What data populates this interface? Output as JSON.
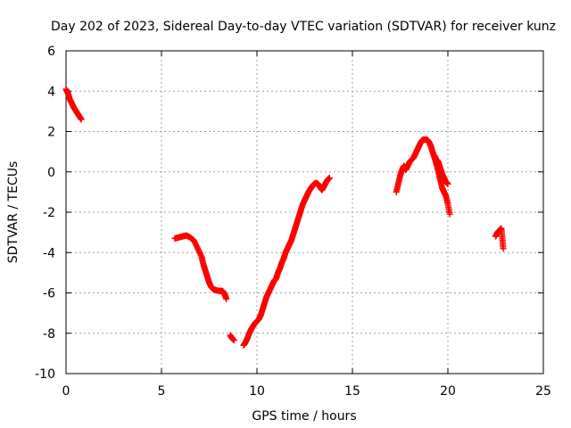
{
  "chart_data": {
    "type": "scatter",
    "title": "Day 202 of 2023, Sidereal Day-to-day VTEC variation (SDTVAR) for receiver kunz",
    "xlabel": "GPS time / hours",
    "ylabel": "SDTVAR / TECUs",
    "xlim": [
      0,
      25
    ],
    "ylim": [
      -10,
      6
    ],
    "xticks": [
      0,
      5,
      10,
      15,
      20,
      25
    ],
    "yticks": [
      -10,
      -8,
      -6,
      -4,
      -2,
      0,
      2,
      4,
      6
    ],
    "grid": true,
    "marker": "+",
    "series": [
      {
        "name": "SDTVAR",
        "color": "#ff0000",
        "segments": [
          [
            [
              0.0,
              4.1
            ],
            [
              0.1,
              3.9
            ],
            [
              0.2,
              3.6
            ],
            [
              0.3,
              3.4
            ],
            [
              0.4,
              3.2
            ],
            [
              0.5,
              3.05
            ],
            [
              0.6,
              2.9
            ],
            [
              0.7,
              2.75
            ],
            [
              0.8,
              2.6
            ]
          ],
          [
            [
              5.7,
              -3.3
            ],
            [
              5.9,
              -3.25
            ],
            [
              6.1,
              -3.2
            ],
            [
              6.3,
              -3.15
            ],
            [
              6.5,
              -3.25
            ],
            [
              6.7,
              -3.4
            ],
            [
              6.9,
              -3.8
            ],
            [
              7.1,
              -4.2
            ],
            [
              7.2,
              -4.6
            ],
            [
              7.3,
              -4.9
            ],
            [
              7.4,
              -5.2
            ],
            [
              7.5,
              -5.5
            ],
            [
              7.6,
              -5.7
            ],
            [
              7.7,
              -5.8
            ],
            [
              7.8,
              -5.85
            ],
            [
              8.0,
              -5.9
            ],
            [
              8.2,
              -5.9
            ],
            [
              8.3,
              -6.05
            ],
            [
              8.4,
              -6.3
            ]
          ],
          [
            [
              8.6,
              -8.1
            ],
            [
              8.7,
              -8.25
            ],
            [
              8.8,
              -8.35
            ]
          ],
          [
            [
              9.3,
              -8.6
            ],
            [
              9.4,
              -8.45
            ],
            [
              9.5,
              -8.25
            ],
            [
              9.6,
              -8.0
            ],
            [
              9.7,
              -7.8
            ],
            [
              9.8,
              -7.65
            ],
            [
              9.9,
              -7.5
            ],
            [
              10.0,
              -7.4
            ],
            [
              10.1,
              -7.3
            ],
            [
              10.2,
              -7.1
            ],
            [
              10.3,
              -6.8
            ],
            [
              10.4,
              -6.5
            ],
            [
              10.5,
              -6.2
            ],
            [
              10.6,
              -6.0
            ],
            [
              10.7,
              -5.8
            ],
            [
              10.8,
              -5.6
            ],
            [
              10.9,
              -5.4
            ],
            [
              11.0,
              -5.3
            ],
            [
              11.1,
              -5.0
            ],
            [
              11.2,
              -4.8
            ],
            [
              11.3,
              -4.5
            ],
            [
              11.4,
              -4.3
            ],
            [
              11.5,
              -4.0
            ],
            [
              11.6,
              -3.8
            ],
            [
              11.7,
              -3.6
            ],
            [
              11.8,
              -3.4
            ],
            [
              11.9,
              -3.1
            ],
            [
              12.0,
              -2.8
            ],
            [
              12.1,
              -2.5
            ],
            [
              12.2,
              -2.2
            ],
            [
              12.3,
              -1.9
            ],
            [
              12.4,
              -1.6
            ],
            [
              12.5,
              -1.4
            ],
            [
              12.6,
              -1.2
            ],
            [
              12.7,
              -1.0
            ],
            [
              12.8,
              -0.85
            ],
            [
              12.9,
              -0.7
            ],
            [
              13.0,
              -0.6
            ],
            [
              13.1,
              -0.55
            ],
            [
              13.2,
              -0.6
            ],
            [
              13.3,
              -0.75
            ],
            [
              13.4,
              -0.9
            ],
            [
              13.5,
              -0.75
            ],
            [
              13.6,
              -0.55
            ],
            [
              13.7,
              -0.4
            ],
            [
              13.8,
              -0.3
            ]
          ],
          [
            [
              17.3,
              -1.0
            ],
            [
              17.4,
              -0.6
            ],
            [
              17.5,
              -0.2
            ],
            [
              17.6,
              0.1
            ],
            [
              17.7,
              0.3
            ],
            [
              17.8,
              0.1
            ],
            [
              17.9,
              0.3
            ],
            [
              18.0,
              0.5
            ],
            [
              18.1,
              0.6
            ],
            [
              18.2,
              0.7
            ],
            [
              18.3,
              0.9
            ],
            [
              18.4,
              1.1
            ],
            [
              18.5,
              1.3
            ],
            [
              18.6,
              1.5
            ],
            [
              18.7,
              1.6
            ],
            [
              18.8,
              1.6
            ],
            [
              18.9,
              1.6
            ],
            [
              19.0,
              1.5
            ],
            [
              19.1,
              1.3
            ],
            [
              19.2,
              1.0
            ],
            [
              19.3,
              0.7
            ],
            [
              19.4,
              0.4
            ],
            [
              19.5,
              0.0
            ],
            [
              19.6,
              -0.4
            ],
            [
              19.7,
              -0.8
            ],
            [
              19.8,
              -1.0
            ],
            [
              19.9,
              -1.2
            ],
            [
              20.0,
              -1.6
            ],
            [
              20.1,
              -2.1
            ]
          ],
          [
            [
              19.3,
              0.8
            ],
            [
              19.4,
              0.6
            ],
            [
              19.5,
              0.5
            ],
            [
              19.6,
              0.2
            ],
            [
              19.7,
              -0.1
            ],
            [
              19.8,
              -0.3
            ],
            [
              19.9,
              -0.5
            ],
            [
              20.0,
              -0.6
            ]
          ],
          [
            [
              22.5,
              -3.2
            ],
            [
              22.6,
              -3.0
            ],
            [
              22.7,
              -2.9
            ],
            [
              22.8,
              -2.8
            ],
            [
              22.85,
              -3.3
            ],
            [
              22.9,
              -3.8
            ]
          ]
        ]
      }
    ]
  }
}
